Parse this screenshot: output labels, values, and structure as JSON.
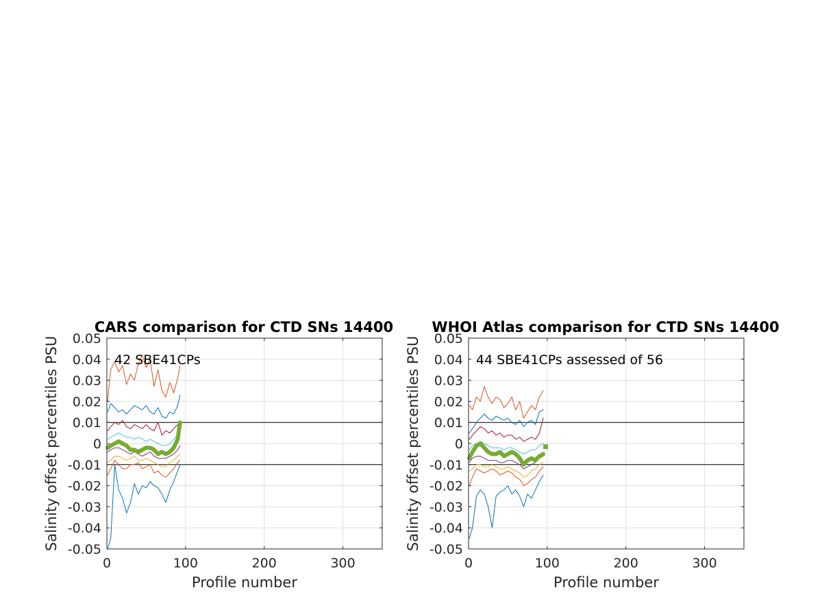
{
  "colors": {
    "p1": "#0072BD",
    "p2": "#D95319",
    "p3": "#EDB120",
    "p4": "#7E2F8E",
    "p5": "#77AC30",
    "p6": "#4DBEEE",
    "p7": "#A2142F",
    "grid": "#dfdfdf",
    "axis": "#262626",
    "reference": "#000000"
  },
  "chart_data": [
    {
      "type": "line",
      "title": "CARS comparison for CTD SNs 14400",
      "annotation": "42 SBE41CPs",
      "xlabel": "Profile number",
      "ylabel": "Salinity offset percentiles PSU",
      "xlim": [
        0,
        350
      ],
      "ylim": [
        -0.05,
        0.05
      ],
      "xticks": [
        0,
        100,
        200,
        300
      ],
      "xtick_labels": [
        "0",
        "100",
        "200",
        "300"
      ],
      "yticks": [
        -0.05,
        -0.04,
        -0.03,
        -0.02,
        -0.01,
        0,
        0.01,
        0.02,
        0.03,
        0.04,
        0.05
      ],
      "ytick_labels": [
        "-0.05",
        "-0.04",
        "-0.03",
        "-0.02",
        "-0.01",
        "0",
        "0.01",
        "0.02",
        "0.03",
        "0.04",
        "0.05"
      ],
      "grid": true,
      "reference_lines": [
        0.01,
        -0.01
      ],
      "series": [
        {
          "color_key": "p1",
          "width": 1,
          "x": [
            1,
            5,
            10,
            15,
            20,
            25,
            30,
            35,
            40,
            45,
            50,
            55,
            60,
            65,
            70,
            75,
            80,
            85,
            90,
            93
          ],
          "values": [
            -0.05,
            -0.045,
            -0.01,
            -0.022,
            -0.026,
            -0.033,
            -0.028,
            -0.019,
            -0.024,
            -0.02,
            -0.021,
            -0.018,
            -0.02,
            -0.021,
            -0.024,
            -0.028,
            -0.022,
            -0.018,
            -0.013,
            -0.01
          ]
        },
        {
          "color_key": "p2",
          "width": 1,
          "x": [
            1,
            5,
            10,
            15,
            20,
            25,
            30,
            35,
            40,
            45,
            50,
            55,
            60,
            65,
            70,
            75,
            80,
            85,
            90,
            93
          ],
          "values": [
            -0.015,
            -0.012,
            -0.008,
            -0.01,
            -0.012,
            -0.012,
            -0.01,
            -0.01,
            -0.009,
            -0.012,
            -0.011,
            -0.01,
            -0.014,
            -0.013,
            -0.015,
            -0.016,
            -0.014,
            -0.012,
            -0.009,
            -0.008
          ]
        },
        {
          "color_key": "p3",
          "width": 1,
          "x": [
            1,
            5,
            10,
            15,
            20,
            25,
            30,
            35,
            40,
            45,
            50,
            55,
            60,
            65,
            70,
            75,
            80,
            85,
            90,
            93
          ],
          "values": [
            -0.009,
            -0.008,
            -0.006,
            -0.006,
            -0.007,
            -0.008,
            -0.007,
            -0.006,
            -0.008,
            -0.008,
            -0.007,
            -0.008,
            -0.009,
            -0.01,
            -0.011,
            -0.011,
            -0.009,
            -0.008,
            -0.006,
            -0.005
          ]
        },
        {
          "color_key": "p4",
          "width": 1,
          "x": [
            1,
            5,
            10,
            15,
            20,
            25,
            30,
            35,
            40,
            45,
            50,
            55,
            60,
            65,
            70,
            75,
            80,
            85,
            90,
            93
          ],
          "values": [
            -0.004,
            -0.003,
            -0.002,
            -0.002,
            -0.003,
            -0.004,
            -0.005,
            -0.004,
            -0.005,
            -0.006,
            -0.005,
            -0.004,
            -0.006,
            -0.007,
            -0.007,
            -0.007,
            -0.006,
            -0.005,
            -0.003,
            -0.001
          ]
        },
        {
          "color_key": "p6",
          "width": 1,
          "x": [
            1,
            5,
            10,
            15,
            20,
            25,
            30,
            35,
            40,
            45,
            50,
            55,
            60,
            65,
            70,
            75,
            80,
            85,
            90,
            93
          ],
          "values": [
            0.002,
            0.003,
            0.004,
            0.005,
            0.004,
            0.003,
            0.003,
            0.002,
            0.003,
            0.002,
            0.001,
            0.002,
            0.001,
            0.0,
            -0.001,
            -0.001,
            0.0,
            0.002,
            0.004,
            0.005
          ]
        },
        {
          "color_key": "p7",
          "width": 1,
          "x": [
            1,
            5,
            10,
            15,
            20,
            25,
            30,
            35,
            40,
            45,
            50,
            55,
            60,
            65,
            70,
            75,
            80,
            85,
            90,
            93
          ],
          "values": [
            0.006,
            0.008,
            0.01,
            0.009,
            0.011,
            0.008,
            0.007,
            0.009,
            0.008,
            0.007,
            0.009,
            0.007,
            0.006,
            0.01,
            0.004,
            0.006,
            0.005,
            0.007,
            0.009,
            0.01
          ]
        },
        {
          "color_key": "p1",
          "width": 1,
          "x": [
            1,
            5,
            10,
            15,
            20,
            25,
            30,
            35,
            40,
            45,
            50,
            55,
            60,
            65,
            70,
            75,
            80,
            85,
            90,
            93
          ],
          "values": [
            0.015,
            0.019,
            0.017,
            0.015,
            0.016,
            0.014,
            0.016,
            0.018,
            0.017,
            0.016,
            0.018,
            0.015,
            0.014,
            0.017,
            0.013,
            0.012,
            0.015,
            0.014,
            0.018,
            0.023
          ]
        },
        {
          "color_key": "p2",
          "width": 1,
          "x": [
            1,
            5,
            10,
            15,
            20,
            25,
            30,
            35,
            40,
            45,
            50,
            55,
            60,
            65,
            70,
            75,
            80,
            85,
            90,
            93
          ],
          "values": [
            0.02,
            0.035,
            0.039,
            0.034,
            0.037,
            0.028,
            0.033,
            0.03,
            0.038,
            0.042,
            0.036,
            0.04,
            0.027,
            0.035,
            0.025,
            0.022,
            0.029,
            0.024,
            0.031,
            0.037
          ]
        },
        {
          "color_key": "p5",
          "width": 6,
          "x": [
            1,
            5,
            10,
            15,
            20,
            25,
            30,
            35,
            40,
            45,
            50,
            55,
            60,
            65,
            70,
            75,
            80,
            85,
            90,
            93
          ],
          "values": [
            -0.002,
            -0.001,
            0.0,
            0.001,
            0.0,
            -0.001,
            -0.003,
            -0.003,
            -0.004,
            -0.003,
            -0.002,
            -0.002,
            -0.003,
            -0.005,
            -0.004,
            -0.005,
            -0.004,
            -0.002,
            0.002,
            0.01
          ]
        }
      ]
    },
    {
      "type": "line",
      "title": "WHOI Atlas comparison for CTD SNs 14400",
      "annotation": "44 SBE41CPs assessed of 56",
      "xlabel": "Profile number",
      "ylabel": "Salinity offset percentiles PSU",
      "xlim": [
        0,
        350
      ],
      "ylim": [
        -0.05,
        0.05
      ],
      "xticks": [
        0,
        100,
        200,
        300
      ],
      "xtick_labels": [
        "0",
        "100",
        "200",
        "300"
      ],
      "yticks": [
        -0.05,
        -0.04,
        -0.03,
        -0.02,
        -0.01,
        0,
        0.01,
        0.02,
        0.03,
        0.04,
        0.05
      ],
      "ytick_labels": [
        "-0.05",
        "-0.04",
        "-0.03",
        "-0.02",
        "-0.01",
        "0",
        "0.01",
        "0.02",
        "0.03",
        "0.04",
        "0.05"
      ],
      "grid": true,
      "reference_lines": [
        0.01,
        -0.01
      ],
      "series": [
        {
          "color_key": "p1",
          "width": 1,
          "x": [
            1,
            5,
            10,
            15,
            20,
            25,
            30,
            35,
            40,
            45,
            50,
            55,
            60,
            65,
            70,
            75,
            80,
            85,
            90,
            95
          ],
          "values": [
            -0.045,
            -0.04,
            -0.025,
            -0.022,
            -0.024,
            -0.03,
            -0.04,
            -0.025,
            -0.023,
            -0.022,
            -0.02,
            -0.024,
            -0.022,
            -0.025,
            -0.03,
            -0.024,
            -0.026,
            -0.022,
            -0.018,
            -0.015
          ]
        },
        {
          "color_key": "p2",
          "width": 1,
          "x": [
            1,
            5,
            10,
            15,
            20,
            25,
            30,
            35,
            40,
            45,
            50,
            55,
            60,
            65,
            70,
            75,
            80,
            85,
            90,
            95
          ],
          "values": [
            -0.02,
            -0.016,
            -0.012,
            -0.013,
            -0.014,
            -0.013,
            -0.012,
            -0.013,
            -0.015,
            -0.014,
            -0.013,
            -0.014,
            -0.016,
            -0.017,
            -0.02,
            -0.019,
            -0.017,
            -0.016,
            -0.013,
            -0.011
          ]
        },
        {
          "color_key": "p3",
          "width": 1,
          "x": [
            1,
            5,
            10,
            15,
            20,
            25,
            30,
            35,
            40,
            45,
            50,
            55,
            60,
            65,
            70,
            75,
            80,
            85,
            90,
            95
          ],
          "values": [
            -0.013,
            -0.012,
            -0.01,
            -0.01,
            -0.011,
            -0.011,
            -0.01,
            -0.011,
            -0.012,
            -0.012,
            -0.011,
            -0.012,
            -0.013,
            -0.014,
            -0.016,
            -0.015,
            -0.013,
            -0.012,
            -0.01,
            -0.009
          ]
        },
        {
          "color_key": "p4",
          "width": 1,
          "x": [
            1,
            5,
            10,
            15,
            20,
            25,
            30,
            35,
            40,
            45,
            50,
            55,
            60,
            65,
            70,
            75,
            80,
            85,
            90,
            95
          ],
          "values": [
            -0.009,
            -0.007,
            -0.006,
            -0.006,
            -0.007,
            -0.008,
            -0.008,
            -0.008,
            -0.009,
            -0.009,
            -0.008,
            -0.008,
            -0.009,
            -0.01,
            -0.012,
            -0.011,
            -0.01,
            -0.009,
            -0.007,
            -0.006
          ]
        },
        {
          "color_key": "p6",
          "width": 1,
          "x": [
            1,
            5,
            10,
            15,
            20,
            25,
            30,
            35,
            40,
            45,
            50,
            55,
            60,
            65,
            70,
            75,
            80,
            85,
            90,
            95
          ],
          "values": [
            -0.003,
            -0.001,
            0.0,
            0.001,
            0.0,
            -0.001,
            -0.002,
            -0.002,
            -0.002,
            -0.003,
            -0.002,
            -0.002,
            -0.003,
            -0.004,
            -0.005,
            -0.004,
            -0.003,
            -0.003,
            -0.001,
            0.0
          ]
        },
        {
          "color_key": "p7",
          "width": 1,
          "x": [
            1,
            5,
            10,
            15,
            20,
            25,
            30,
            35,
            40,
            45,
            50,
            55,
            60,
            65,
            70,
            75,
            80,
            85,
            90,
            95
          ],
          "values": [
            0.002,
            0.004,
            0.006,
            0.008,
            0.007,
            0.005,
            0.006,
            0.004,
            0.005,
            0.003,
            0.004,
            0.004,
            0.002,
            0.003,
            0.001,
            0.002,
            0.003,
            0.002,
            0.005,
            0.012
          ]
        },
        {
          "color_key": "p1",
          "width": 1,
          "x": [
            1,
            5,
            10,
            15,
            20,
            25,
            30,
            35,
            40,
            45,
            50,
            55,
            60,
            65,
            70,
            75,
            80,
            85,
            90,
            95
          ],
          "values": [
            0.005,
            0.007,
            0.01,
            0.012,
            0.014,
            0.012,
            0.011,
            0.013,
            0.012,
            0.011,
            0.012,
            0.01,
            0.009,
            0.011,
            0.008,
            0.01,
            0.011,
            0.009,
            0.015,
            0.016
          ]
        },
        {
          "color_key": "p2",
          "width": 1,
          "x": [
            1,
            5,
            10,
            15,
            20,
            25,
            30,
            35,
            40,
            45,
            50,
            55,
            60,
            65,
            70,
            75,
            80,
            85,
            90,
            95
          ],
          "values": [
            0.018,
            0.016,
            0.022,
            0.02,
            0.027,
            0.022,
            0.019,
            0.022,
            0.021,
            0.017,
            0.019,
            0.022,
            0.016,
            0.02,
            0.012,
            0.015,
            0.018,
            0.016,
            0.022,
            0.025
          ]
        },
        {
          "color_key": "p5",
          "width": 6,
          "x": [
            1,
            5,
            10,
            15,
            20,
            25,
            30,
            35,
            40,
            45,
            50,
            55,
            60,
            65,
            70,
            75,
            80,
            85,
            90,
            95
          ],
          "values": [
            -0.007,
            -0.004,
            -0.001,
            0.0,
            -0.002,
            -0.004,
            -0.005,
            -0.005,
            -0.004,
            -0.006,
            -0.005,
            -0.004,
            -0.005,
            -0.007,
            -0.01,
            -0.008,
            -0.007,
            -0.008,
            -0.006,
            -0.005
          ]
        }
      ],
      "markers": [
        {
          "color_key": "p5",
          "x": 98,
          "value": -0.0015
        }
      ]
    }
  ]
}
